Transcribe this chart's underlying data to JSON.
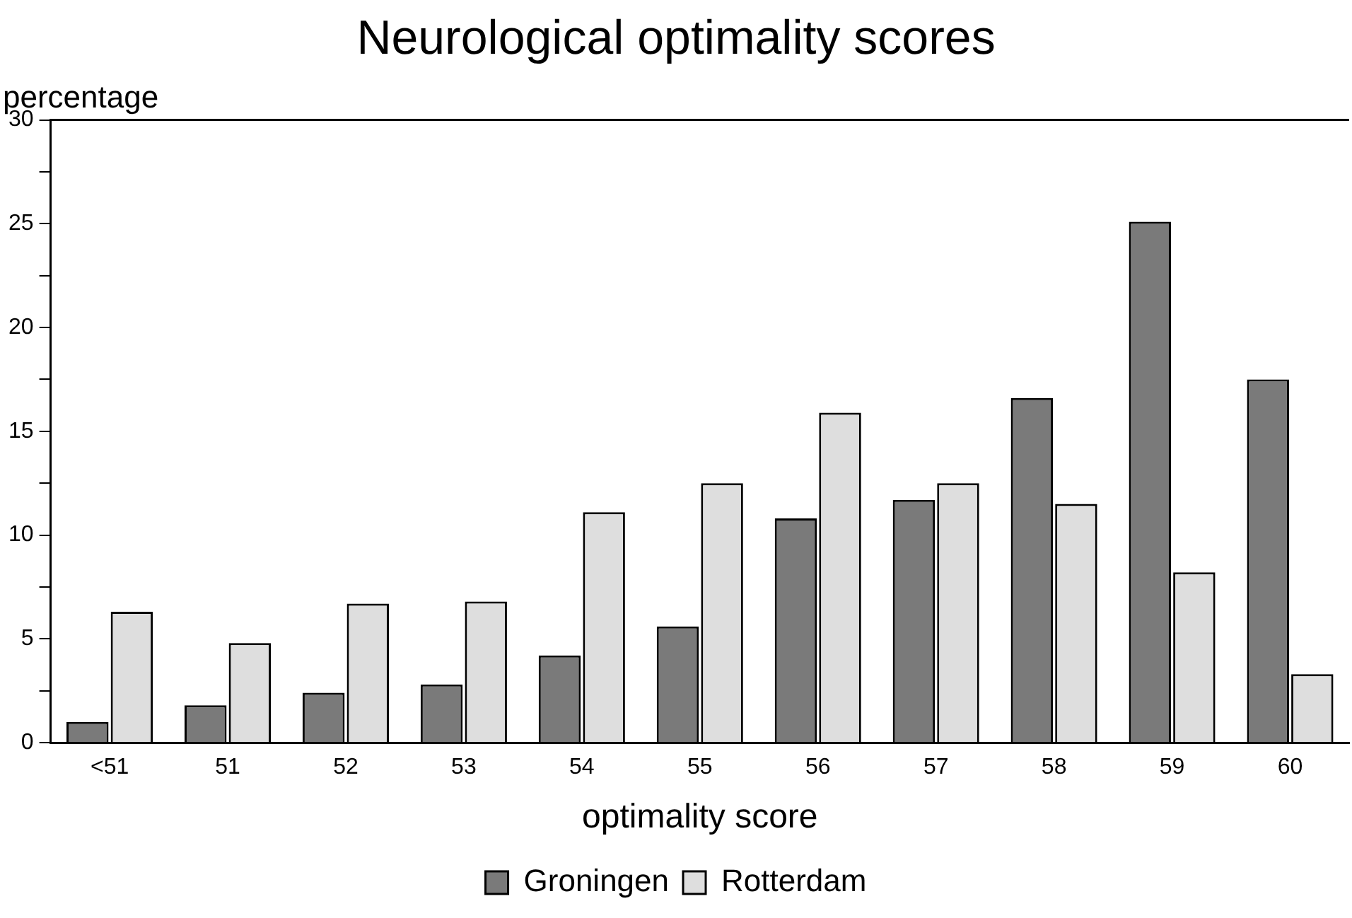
{
  "chart_data": {
    "type": "bar",
    "title": "Neurological optimality scores",
    "xlabel": "optimality score",
    "ylabel": "percentage",
    "categories": [
      "<51",
      "51",
      "52",
      "53",
      "54",
      "55",
      "56",
      "57",
      "58",
      "59",
      "60"
    ],
    "series": [
      {
        "name": "Groningen",
        "color": "#7a7a7a",
        "values": [
          1.0,
          1.8,
          2.4,
          2.8,
          4.2,
          5.6,
          10.8,
          11.7,
          16.6,
          25.1,
          17.5
        ]
      },
      {
        "name": "Rotterdam",
        "color": "#dedede",
        "values": [
          6.3,
          4.8,
          6.7,
          6.8,
          11.1,
          12.5,
          15.9,
          12.5,
          11.5,
          8.2,
          3.3
        ]
      }
    ],
    "ylim": [
      0,
      30
    ],
    "yticks": [
      0,
      {
        "value": 2.5,
        "label": null
      },
      5,
      {
        "value": 7.5,
        "label": null
      },
      10,
      {
        "value": 12.5,
        "label": null
      },
      15,
      {
        "value": 17.5,
        "label": null
      },
      20,
      {
        "value": 22.5,
        "label": null
      },
      25,
      {
        "value": 27.5,
        "label": null
      },
      30
    ],
    "grid": false,
    "legend": "bottom"
  }
}
